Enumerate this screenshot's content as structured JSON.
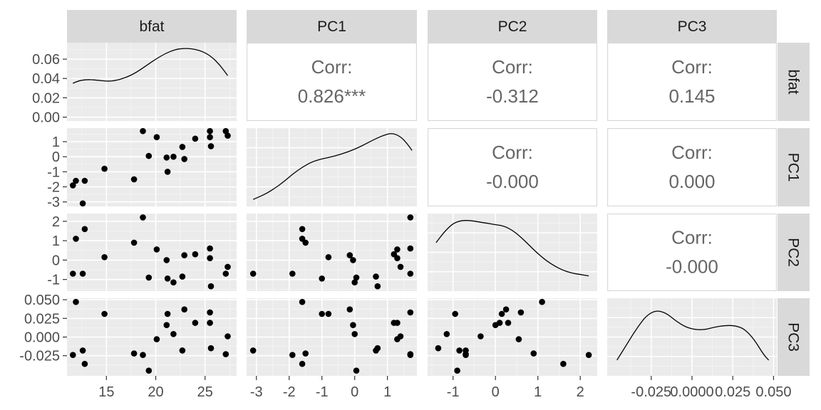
{
  "chart_data": {
    "type": "scatter-matrix",
    "variables": [
      "bfat",
      "PC1",
      "PC2",
      "PC3"
    ],
    "correlation_label": "Corr:",
    "correlations": [
      {
        "row": "bfat",
        "col": "PC1",
        "value": "0.826***"
      },
      {
        "row": "bfat",
        "col": "PC2",
        "value": "-0.312"
      },
      {
        "row": "bfat",
        "col": "PC3",
        "value": "0.145"
      },
      {
        "row": "PC1",
        "col": "PC2",
        "value": "-0.000"
      },
      {
        "row": "PC1",
        "col": "PC3",
        "value": "0.000"
      },
      {
        "row": "PC2",
        "col": "PC3",
        "value": "-0.000"
      }
    ],
    "axes": {
      "bfat": {
        "range": [
          11,
          28.2
        ],
        "ticks": [
          15,
          20,
          25
        ],
        "tick_labels": [
          "15",
          "20",
          "25"
        ]
      },
      "PC1": {
        "range": [
          -3.3,
          1.9
        ],
        "ticks": [
          -3,
          -2,
          -1,
          0,
          1
        ],
        "tick_labels": [
          "-3",
          "-2",
          "-1",
          "0",
          "1"
        ]
      },
      "PC2": {
        "range": [
          -1.6,
          2.4
        ],
        "ticks": [
          -1,
          0,
          1,
          2
        ],
        "tick_labels": [
          "-1",
          "0",
          "1",
          "2"
        ]
      },
      "PC3": {
        "range": [
          -0.052,
          0.052
        ],
        "ticks": [
          -0.025,
          0,
          0.025,
          0.05
        ],
        "tick_labels": [
          "-0.025",
          "0.000",
          "0.025",
          "0.050"
        ],
        "x_tick_labels": [
          "-0.025",
          "0.0000",
          "0.025",
          "0.050"
        ]
      },
      "density": {
        "range": [
          -0.004,
          0.077
        ],
        "ticks": [
          0,
          0.02,
          0.04,
          0.06
        ],
        "tick_labels": [
          "0.00",
          "0.02",
          "0.04",
          "0.06"
        ]
      }
    },
    "points": [
      {
        "bfat": 11.6,
        "PC1": -1.9,
        "PC2": -0.7,
        "PC3": -0.024
      },
      {
        "bfat": 11.9,
        "PC1": -1.6,
        "PC2": 1.1,
        "PC3": 0.047
      },
      {
        "bfat": 12.6,
        "PC1": -3.1,
        "PC2": -0.7,
        "PC3": -0.018
      },
      {
        "bfat": 12.8,
        "PC1": -1.6,
        "PC2": 1.6,
        "PC3": -0.036
      },
      {
        "bfat": 14.8,
        "PC1": -0.8,
        "PC2": 0.15,
        "PC3": 0.031
      },
      {
        "bfat": 17.8,
        "PC1": -1.5,
        "PC2": 0.9,
        "PC3": -0.022
      },
      {
        "bfat": 18.7,
        "PC1": 1.7,
        "PC2": 2.2,
        "PC3": -0.024
      },
      {
        "bfat": 19.3,
        "PC1": 0.05,
        "PC2": -0.9,
        "PC3": -0.045
      },
      {
        "bfat": 20.1,
        "PC1": 1.3,
        "PC2": 0.55,
        "PC3": -0.003
      },
      {
        "bfat": 21.1,
        "PC1": -0.05,
        "PC2": 0.0,
        "PC3": 0.016
      },
      {
        "bfat": 21.2,
        "PC1": -1.0,
        "PC2": -0.95,
        "PC3": 0.031
      },
      {
        "bfat": 21.8,
        "PC1": 0.0,
        "PC2": -1.15,
        "PC3": 0.004
      },
      {
        "bfat": 22.7,
        "PC1": 0.65,
        "PC2": -0.85,
        "PC3": -0.018
      },
      {
        "bfat": 22.9,
        "PC1": -0.15,
        "PC2": 0.25,
        "PC3": 0.037
      },
      {
        "bfat": 24.0,
        "PC1": 1.2,
        "PC2": 0.3,
        "PC3": 0.019
      },
      {
        "bfat": 25.5,
        "PC1": 1.7,
        "PC2": 0.6,
        "PC3": 0.033
      },
      {
        "bfat": 25.5,
        "PC1": 1.3,
        "PC2": 0.1,
        "PC3": 0.019
      },
      {
        "bfat": 25.6,
        "PC1": 0.7,
        "PC2": -1.35,
        "PC3": -0.015
      },
      {
        "bfat": 27.1,
        "PC1": 1.7,
        "PC2": -0.7,
        "PC3": -0.023
      },
      {
        "bfat": 27.3,
        "PC1": 1.4,
        "PC2": -0.35,
        "PC3": 0.001
      }
    ],
    "densities": {
      "bfat": [
        [
          11.6,
          0.035
        ],
        [
          12.3,
          0.038
        ],
        [
          13.2,
          0.039
        ],
        [
          14.3,
          0.038
        ],
        [
          15.2,
          0.037
        ],
        [
          16.0,
          0.038
        ],
        [
          17.0,
          0.041
        ],
        [
          18.0,
          0.046
        ],
        [
          19.0,
          0.053
        ],
        [
          20.0,
          0.06
        ],
        [
          21.0,
          0.066
        ],
        [
          22.0,
          0.07
        ],
        [
          22.7,
          0.071
        ],
        [
          23.5,
          0.071
        ],
        [
          24.5,
          0.069
        ],
        [
          25.5,
          0.064
        ],
        [
          26.5,
          0.054
        ],
        [
          27.3,
          0.043
        ]
      ],
      "PC1": [
        [
          -3.1,
          0.05
        ],
        [
          -2.8,
          0.08
        ],
        [
          -2.5,
          0.12
        ],
        [
          -2.2,
          0.17
        ],
        [
          -1.9,
          0.23
        ],
        [
          -1.6,
          0.28
        ],
        [
          -1.3,
          0.32
        ],
        [
          -1.0,
          0.34
        ],
        [
          -0.6,
          0.36
        ],
        [
          -0.2,
          0.39
        ],
        [
          0.2,
          0.43
        ],
        [
          0.6,
          0.48
        ],
        [
          0.9,
          0.51
        ],
        [
          1.15,
          0.525
        ],
        [
          1.4,
          0.5
        ],
        [
          1.6,
          0.45
        ],
        [
          1.75,
          0.4
        ]
      ],
      "PC2": [
        [
          -1.4,
          0.35
        ],
        [
          -1.2,
          0.43
        ],
        [
          -1.0,
          0.49
        ],
        [
          -0.8,
          0.51
        ],
        [
          -0.6,
          0.51
        ],
        [
          -0.4,
          0.5
        ],
        [
          -0.2,
          0.49
        ],
        [
          0.0,
          0.48
        ],
        [
          0.2,
          0.47
        ],
        [
          0.4,
          0.44
        ],
        [
          0.6,
          0.39
        ],
        [
          0.8,
          0.33
        ],
        [
          1.0,
          0.27
        ],
        [
          1.2,
          0.22
        ],
        [
          1.4,
          0.18
        ],
        [
          1.6,
          0.15
        ],
        [
          1.8,
          0.13
        ],
        [
          2.0,
          0.12
        ],
        [
          2.2,
          0.11
        ]
      ],
      "PC3": [
        [
          -0.046,
          11.0
        ],
        [
          -0.04,
          14.0
        ],
        [
          -0.034,
          17.0
        ],
        [
          -0.028,
          19.5
        ],
        [
          -0.022,
          20.5
        ],
        [
          -0.016,
          20.0
        ],
        [
          -0.01,
          18.5
        ],
        [
          -0.004,
          17.3
        ],
        [
          0.002,
          16.8
        ],
        [
          0.008,
          16.8
        ],
        [
          0.014,
          17.3
        ],
        [
          0.02,
          17.6
        ],
        [
          0.026,
          17.6
        ],
        [
          0.032,
          17.0
        ],
        [
          0.038,
          15.0
        ],
        [
          0.044,
          12.0
        ],
        [
          0.047,
          11.0
        ]
      ]
    },
    "density_ranges": {
      "bfat": [
        -0.004,
        0.077
      ],
      "PC1": [
        0.0,
        0.56
      ],
      "PC2": [
        0.0,
        0.56
      ],
      "PC3": [
        8.0,
        22.8
      ]
    }
  }
}
